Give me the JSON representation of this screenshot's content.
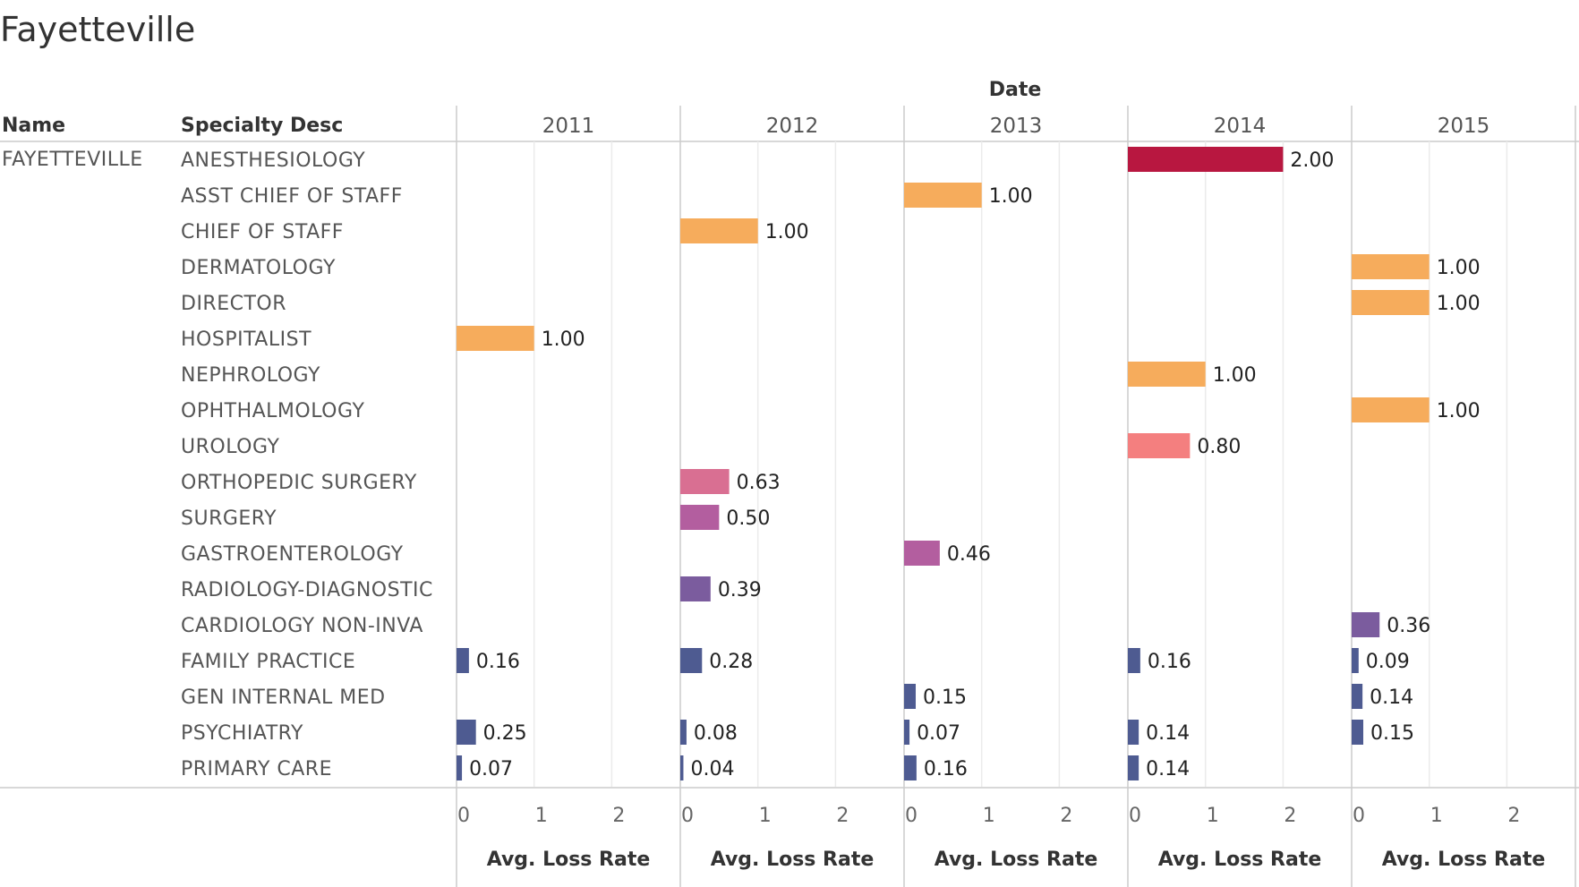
{
  "title": "Fayetteville",
  "column_group_header": "Date",
  "row_headers": {
    "name": "Name",
    "specialty": "Specialty Desc"
  },
  "name_value": "FAYETTEVILLE",
  "chart_data": {
    "type": "bar",
    "orientation": "horizontal",
    "title": "Fayetteville",
    "columns": [
      "2011",
      "2012",
      "2013",
      "2014",
      "2015"
    ],
    "categories": [
      "ANESTHESIOLOGY",
      "ASST CHIEF OF STAFF",
      "CHIEF OF STAFF",
      "DERMATOLOGY",
      "DIRECTOR",
      "HOSPITALIST",
      "NEPHROLOGY",
      "OPHTHALMOLOGY",
      "UROLOGY",
      "ORTHOPEDIC SURGERY",
      "SURGERY",
      "GASTROENTEROLOGY",
      "RADIOLOGY-DIAGNOSTIC",
      "CARDIOLOGY NON-INVA",
      "FAMILY PRACTICE",
      "GEN INTERNAL MED",
      "PSYCHIATRY",
      "PRIMARY CARE"
    ],
    "values": [
      [
        null,
        null,
        null,
        2.0,
        null
      ],
      [
        null,
        null,
        1.0,
        null,
        null
      ],
      [
        null,
        1.0,
        null,
        null,
        null
      ],
      [
        null,
        null,
        null,
        null,
        1.0
      ],
      [
        null,
        null,
        null,
        null,
        1.0
      ],
      [
        1.0,
        null,
        null,
        null,
        null
      ],
      [
        null,
        null,
        null,
        1.0,
        null
      ],
      [
        null,
        null,
        null,
        null,
        1.0
      ],
      [
        null,
        null,
        null,
        0.8,
        null
      ],
      [
        null,
        0.63,
        null,
        null,
        null
      ],
      [
        null,
        0.5,
        null,
        null,
        null
      ],
      [
        null,
        null,
        0.46,
        null,
        null
      ],
      [
        null,
        0.39,
        null,
        null,
        null
      ],
      [
        null,
        null,
        null,
        null,
        0.36
      ],
      [
        0.16,
        0.28,
        null,
        0.16,
        0.09
      ],
      [
        null,
        null,
        0.15,
        null,
        0.14
      ],
      [
        0.25,
        0.08,
        0.07,
        0.14,
        0.15
      ],
      [
        0.07,
        0.04,
        0.16,
        0.14,
        null
      ]
    ],
    "value_labels": [
      [
        null,
        null,
        null,
        "2.00",
        null
      ],
      [
        null,
        null,
        "1.00",
        null,
        null
      ],
      [
        null,
        "1.00",
        null,
        null,
        null
      ],
      [
        null,
        null,
        null,
        null,
        "1.00"
      ],
      [
        null,
        null,
        null,
        null,
        "1.00"
      ],
      [
        "1.00",
        null,
        null,
        null,
        null
      ],
      [
        null,
        null,
        null,
        "1.00",
        null
      ],
      [
        null,
        null,
        null,
        null,
        "1.00"
      ],
      [
        null,
        null,
        null,
        "0.80",
        null
      ],
      [
        null,
        "0.63",
        null,
        null,
        null
      ],
      [
        null,
        "0.50",
        null,
        null,
        null
      ],
      [
        null,
        null,
        "0.46",
        null,
        null
      ],
      [
        null,
        "0.39",
        null,
        null,
        null
      ],
      [
        null,
        null,
        null,
        null,
        "0.36"
      ],
      [
        "0.16",
        "0.28",
        null,
        "0.16",
        "0.09"
      ],
      [
        null,
        null,
        "0.15",
        null,
        "0.14"
      ],
      [
        "0.25",
        "0.08",
        "0.07",
        "0.14",
        "0.15"
      ],
      [
        "0.07",
        "0.04",
        "0.16",
        "0.14",
        null
      ]
    ],
    "xlabel": "Avg. Loss Rate",
    "xlim": [
      0,
      2.85
    ],
    "xticks": [
      "0",
      "1",
      "2"
    ],
    "grid": true,
    "color_scale": [
      "#4e5b91",
      "#7b5c9e",
      "#b35e9f",
      "#d96f92",
      "#f47f7f",
      "#f6ac5c",
      "#b81740"
    ]
  }
}
